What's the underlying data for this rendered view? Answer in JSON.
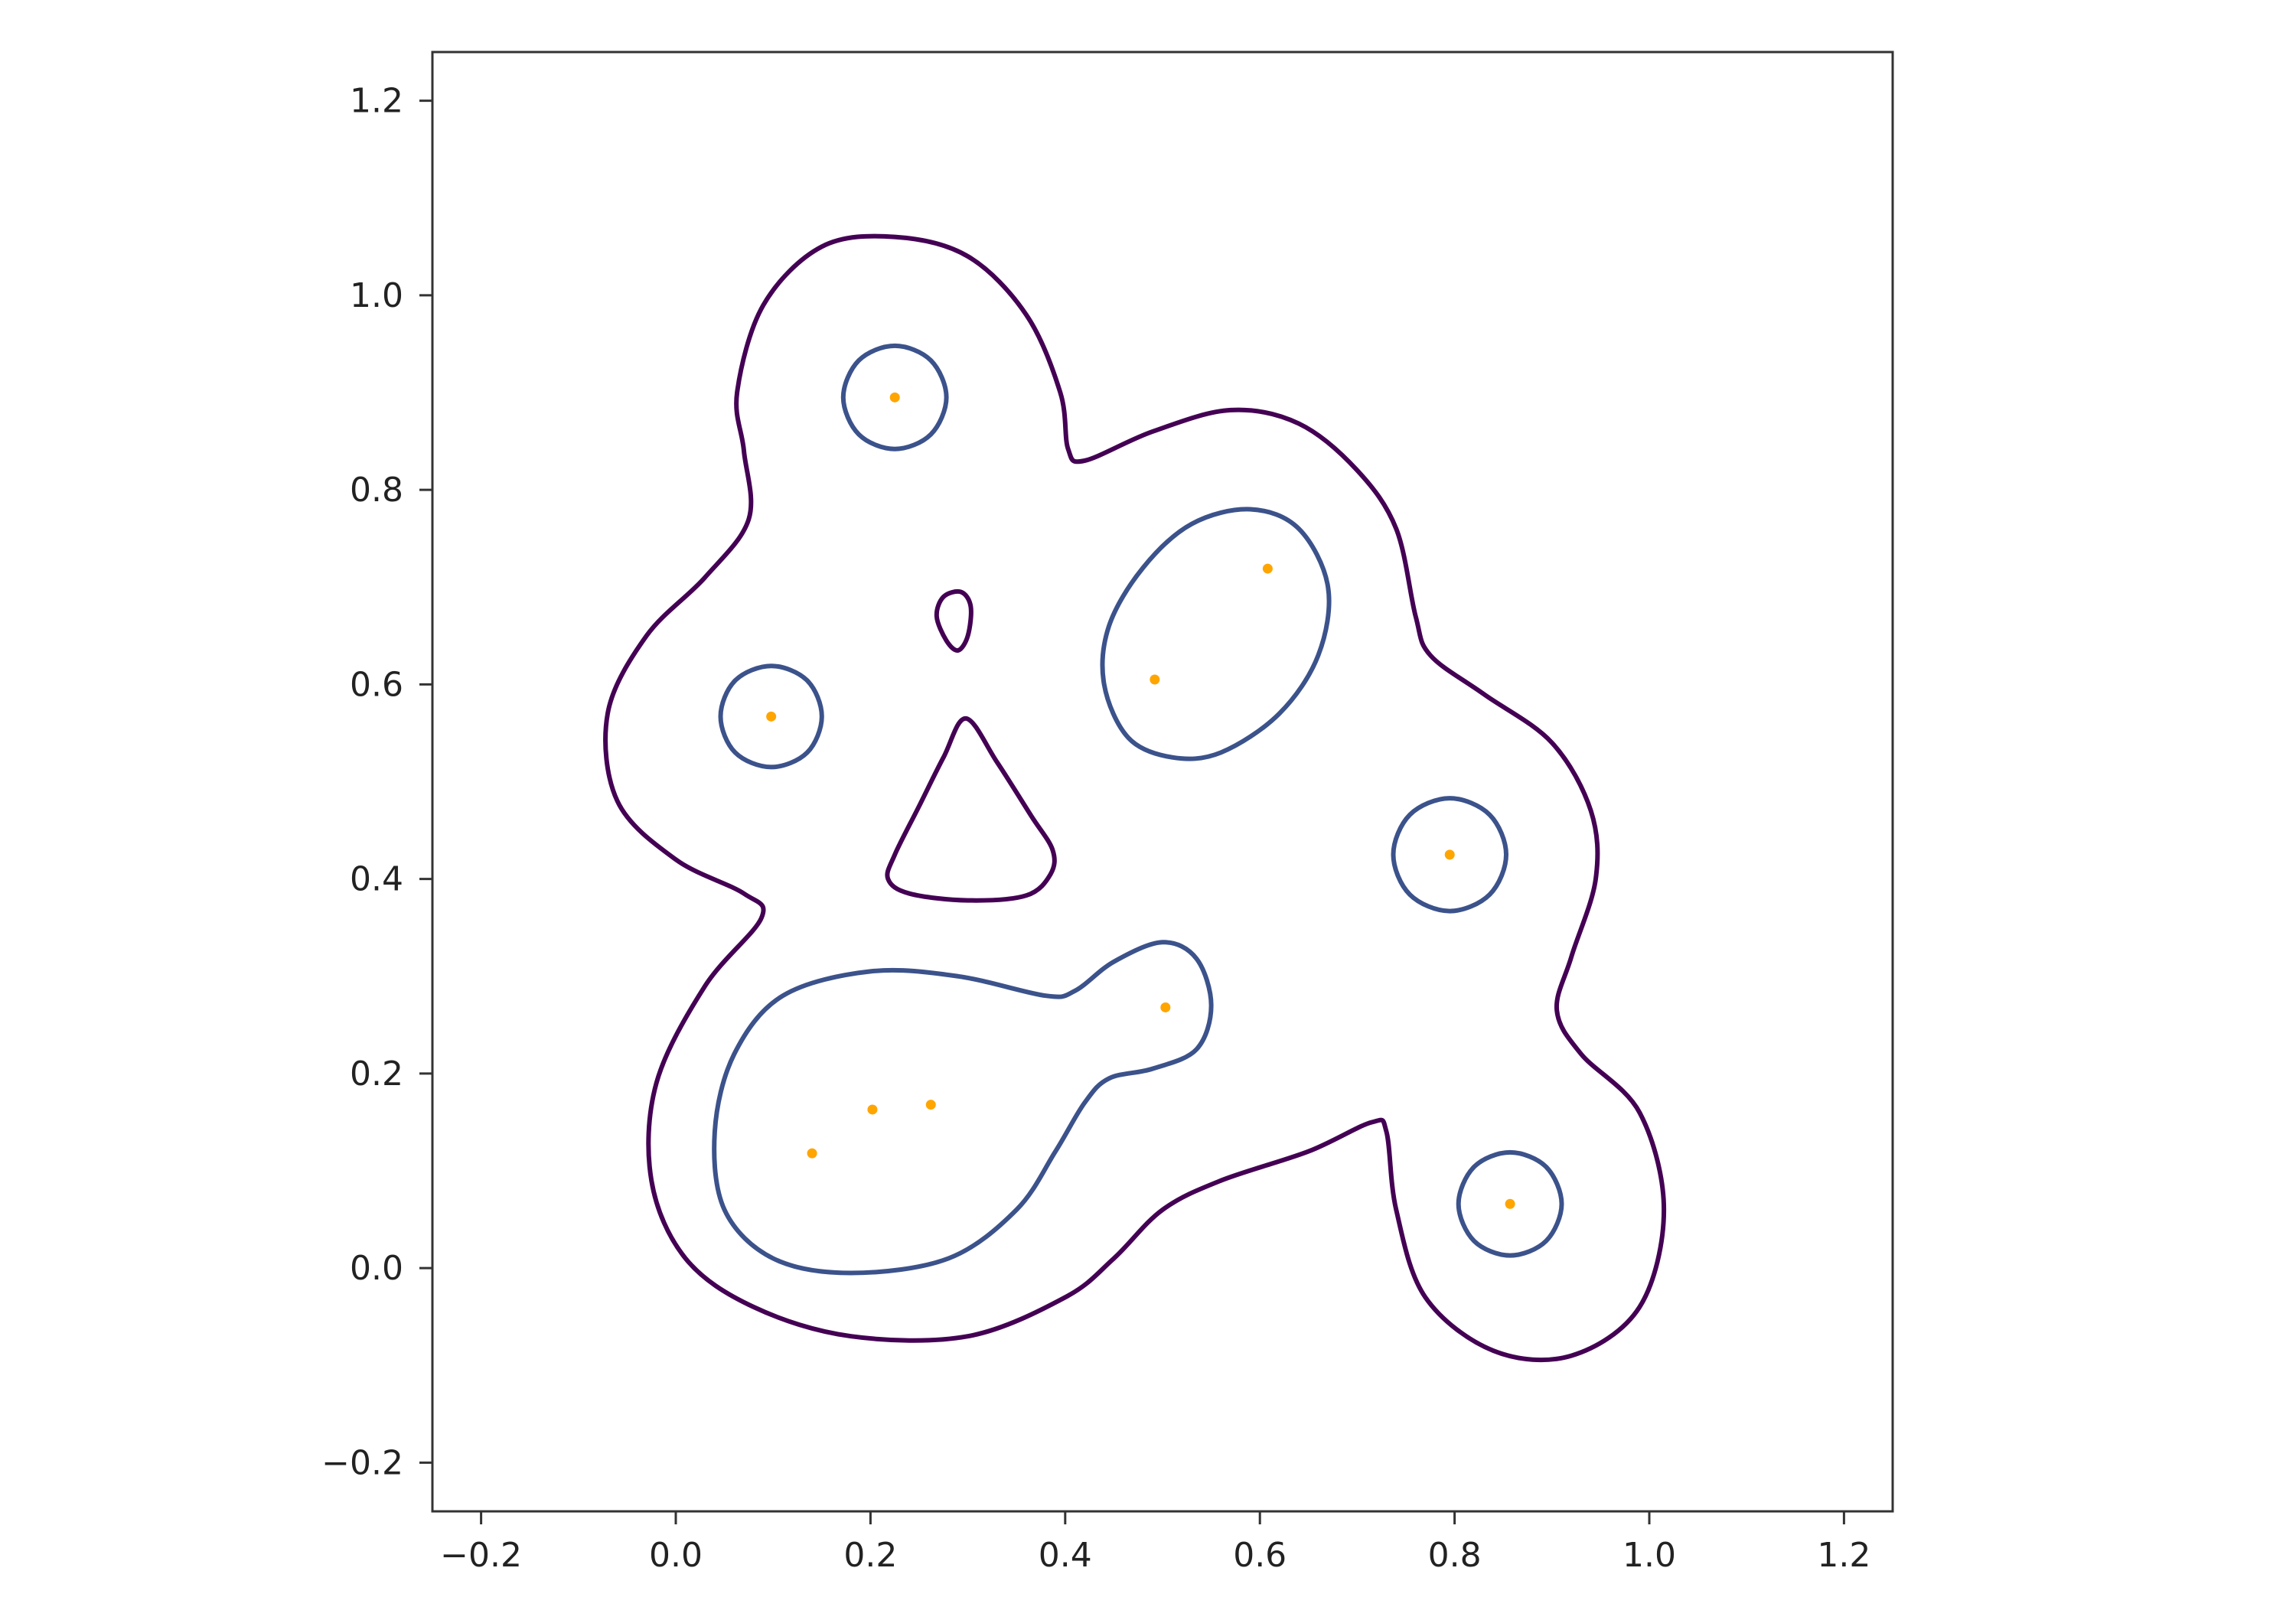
{
  "chart_data": {
    "type": "contour",
    "title": "",
    "xlabel": "",
    "ylabel": "",
    "xlim": [
      -0.25,
      1.25
    ],
    "ylim": [
      -0.25,
      1.25
    ],
    "x_ticks": [
      "−0.2",
      "0.0",
      "0.2",
      "0.4",
      "0.6",
      "0.8",
      "1.0",
      "1.2"
    ],
    "y_ticks": [
      "−0.2",
      "0.0",
      "0.2",
      "0.4",
      "0.6",
      "0.8",
      "1.0",
      "1.2"
    ],
    "grid": false,
    "legend": "none",
    "points": [
      {
        "x": 0.225,
        "y": 0.895
      },
      {
        "x": 0.098,
        "y": 0.567
      },
      {
        "x": 0.492,
        "y": 0.605
      },
      {
        "x": 0.608,
        "y": 0.719
      },
      {
        "x": 0.795,
        "y": 0.425
      },
      {
        "x": 0.503,
        "y": 0.268
      },
      {
        "x": 0.14,
        "y": 0.118
      },
      {
        "x": 0.202,
        "y": 0.163
      },
      {
        "x": 0.262,
        "y": 0.168
      },
      {
        "x": 0.857,
        "y": 0.066
      }
    ],
    "contour_levels": [
      {
        "color": "#440154",
        "paths": [
          [
            [
              0.225,
              1.06
            ],
            [
              0.3,
              1.04
            ],
            [
              0.36,
              0.98
            ],
            [
              0.395,
              0.9
            ],
            [
              0.403,
              0.842
            ],
            [
              0.42,
              0.83
            ],
            [
              0.49,
              0.86
            ],
            [
              0.57,
              0.882
            ],
            [
              0.64,
              0.868
            ],
            [
              0.7,
              0.82
            ],
            [
              0.74,
              0.76
            ],
            [
              0.76,
              0.67
            ],
            [
              0.775,
              0.63
            ],
            [
              0.83,
              0.59
            ],
            [
              0.9,
              0.54
            ],
            [
              0.94,
              0.47
            ],
            [
              0.945,
              0.4
            ],
            [
              0.92,
              0.32
            ],
            [
              0.905,
              0.265
            ],
            [
              0.93,
              0.22
            ],
            [
              0.99,
              0.16
            ],
            [
              1.015,
              0.06
            ],
            [
              0.99,
              -0.04
            ],
            [
              0.92,
              -0.09
            ],
            [
              0.84,
              -0.085
            ],
            [
              0.77,
              -0.03
            ],
            [
              0.74,
              0.06
            ],
            [
              0.73,
              0.14
            ],
            [
              0.715,
              0.15
            ],
            [
              0.65,
              0.12
            ],
            [
              0.56,
              0.09
            ],
            [
              0.5,
              0.06
            ],
            [
              0.45,
              0.01
            ],
            [
              0.4,
              -0.03
            ],
            [
              0.3,
              -0.07
            ],
            [
              0.18,
              -0.07
            ],
            [
              0.08,
              -0.04
            ],
            [
              0.01,
              0.01
            ],
            [
              -0.025,
              0.09
            ],
            [
              -0.02,
              0.19
            ],
            [
              0.03,
              0.29
            ],
            [
              0.088,
              0.36
            ],
            [
              0.07,
              0.385
            ],
            [
              0.0,
              0.42
            ],
            [
              -0.06,
              0.48
            ],
            [
              -0.07,
              0.57
            ],
            [
              -0.03,
              0.65
            ],
            [
              0.03,
              0.71
            ],
            [
              0.075,
              0.77
            ],
            [
              0.07,
              0.84
            ],
            [
              0.063,
              0.9
            ],
            [
              0.09,
              0.99
            ],
            [
              0.15,
              1.05
            ],
            [
              0.225,
              1.06
            ]
          ],
          [
            [
              0.293,
              0.695
            ],
            [
              0.303,
              0.68
            ],
            [
              0.3,
              0.65
            ],
            [
              0.29,
              0.635
            ],
            [
              0.278,
              0.645
            ],
            [
              0.268,
              0.67
            ],
            [
              0.275,
              0.69
            ],
            [
              0.293,
              0.695
            ]
          ],
          [
            [
              0.298,
              0.565
            ],
            [
              0.33,
              0.52
            ],
            [
              0.365,
              0.465
            ],
            [
              0.387,
              0.43
            ],
            [
              0.385,
              0.405
            ],
            [
              0.36,
              0.383
            ],
            [
              0.3,
              0.378
            ],
            [
              0.24,
              0.385
            ],
            [
              0.218,
              0.4
            ],
            [
              0.225,
              0.425
            ],
            [
              0.25,
              0.475
            ],
            [
              0.275,
              0.525
            ],
            [
              0.298,
              0.565
            ]
          ]
        ]
      },
      {
        "color": "#3b528b",
        "paths": [
          [
            [
              0.278,
              0.895
            ],
            [
              0.262,
              0.933
            ],
            [
              0.225,
              0.948
            ],
            [
              0.188,
              0.933
            ],
            [
              0.172,
              0.895
            ],
            [
              0.188,
              0.857
            ],
            [
              0.225,
              0.842
            ],
            [
              0.262,
              0.857
            ],
            [
              0.278,
              0.895
            ]
          ],
          [
            [
              0.15,
              0.567
            ],
            [
              0.135,
              0.604
            ],
            [
              0.098,
              0.619
            ],
            [
              0.061,
              0.604
            ],
            [
              0.046,
              0.567
            ],
            [
              0.061,
              0.53
            ],
            [
              0.098,
              0.515
            ],
            [
              0.135,
              0.53
            ],
            [
              0.15,
              0.567
            ]
          ],
          [
            [
              0.59,
              0.78
            ],
            [
              0.64,
              0.76
            ],
            [
              0.67,
              0.7
            ],
            [
              0.66,
              0.63
            ],
            [
              0.62,
              0.57
            ],
            [
              0.56,
              0.53
            ],
            [
              0.51,
              0.525
            ],
            [
              0.465,
              0.545
            ],
            [
              0.44,
              0.6
            ],
            [
              0.445,
              0.66
            ],
            [
              0.48,
              0.72
            ],
            [
              0.53,
              0.765
            ],
            [
              0.59,
              0.78
            ]
          ],
          [
            [
              0.853,
              0.425
            ],
            [
              0.836,
              0.466
            ],
            [
              0.795,
              0.483
            ],
            [
              0.754,
              0.466
            ],
            [
              0.737,
              0.425
            ],
            [
              0.754,
              0.384
            ],
            [
              0.795,
              0.367
            ],
            [
              0.836,
              0.384
            ],
            [
              0.853,
              0.425
            ]
          ],
          [
            [
              0.5,
              0.335
            ],
            [
              0.535,
              0.318
            ],
            [
              0.55,
              0.27
            ],
            [
              0.535,
              0.225
            ],
            [
              0.49,
              0.205
            ],
            [
              0.445,
              0.195
            ],
            [
              0.42,
              0.17
            ],
            [
              0.39,
              0.12
            ],
            [
              0.35,
              0.06
            ],
            [
              0.28,
              0.01
            ],
            [
              0.18,
              -0.005
            ],
            [
              0.1,
              0.01
            ],
            [
              0.05,
              0.06
            ],
            [
              0.04,
              0.14
            ],
            [
              0.06,
              0.22
            ],
            [
              0.11,
              0.28
            ],
            [
              0.2,
              0.305
            ],
            [
              0.29,
              0.3
            ],
            [
              0.38,
              0.28
            ],
            [
              0.41,
              0.285
            ],
            [
              0.45,
              0.315
            ],
            [
              0.5,
              0.335
            ]
          ],
          [
            [
              0.91,
              0.066
            ],
            [
              0.894,
              0.104
            ],
            [
              0.857,
              0.119
            ],
            [
              0.82,
              0.104
            ],
            [
              0.804,
              0.066
            ],
            [
              0.82,
              0.028
            ],
            [
              0.857,
              0.013
            ],
            [
              0.894,
              0.028
            ],
            [
              0.91,
              0.066
            ]
          ]
        ]
      }
    ],
    "point_color": "#ffa500"
  }
}
